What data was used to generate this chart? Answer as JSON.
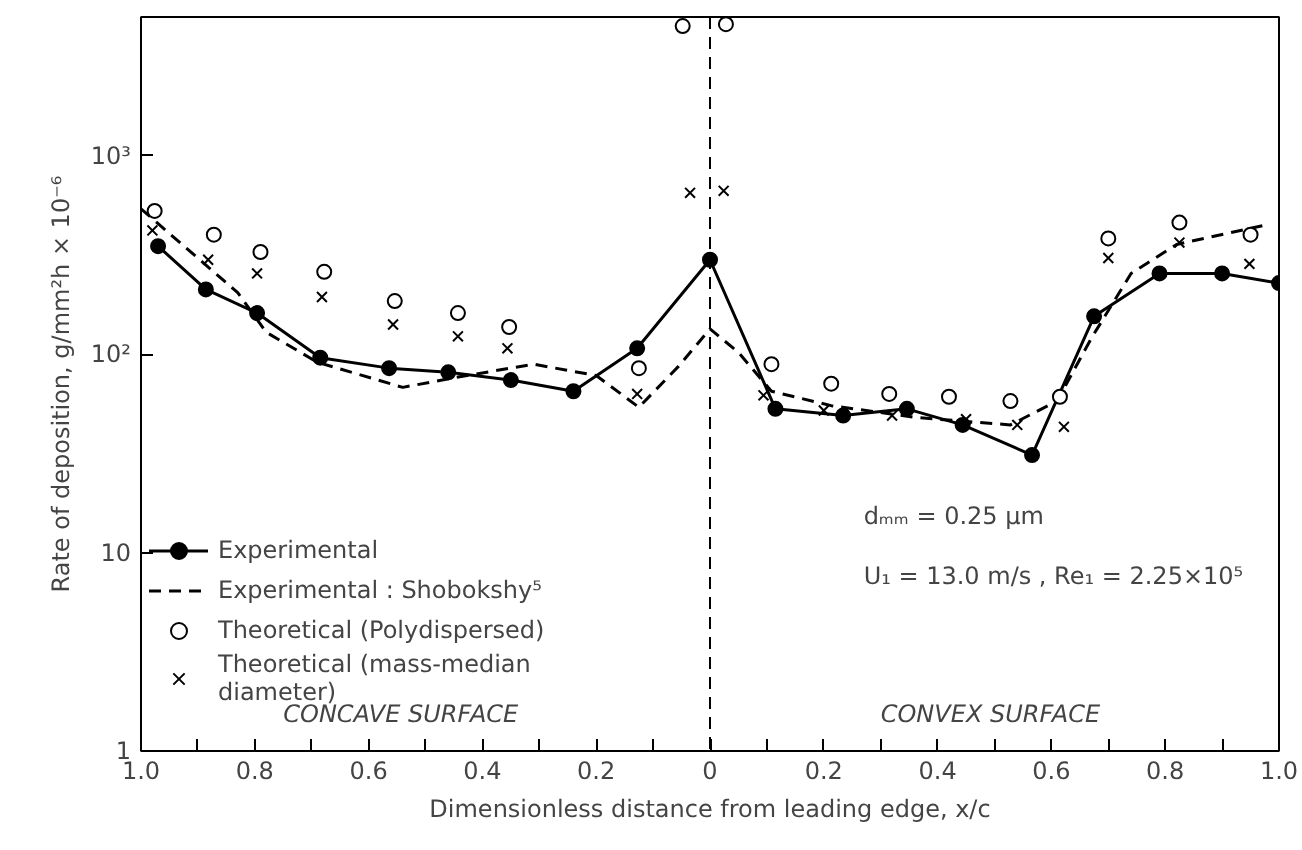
{
  "chart_data": {
    "type": "line",
    "xlabel": "Dimensionless distance from leading edge, x/c",
    "ylabel": "Rate of deposition, g/mm²h × 10⁻⁶",
    "xlim": [
      -1.0,
      1.0
    ],
    "ylim": [
      1,
      5000
    ],
    "log": "y",
    "grid": false,
    "legend": "bottom left",
    "xticks": [
      {
        "value": -1.0,
        "label": "1.0"
      },
      {
        "value": -0.9,
        "label": null
      },
      {
        "value": -0.8,
        "label": "0.8"
      },
      {
        "value": -0.7,
        "label": null
      },
      {
        "value": -0.6,
        "label": "0.6"
      },
      {
        "value": -0.5,
        "label": null
      },
      {
        "value": -0.4,
        "label": "0.4"
      },
      {
        "value": -0.3,
        "label": null
      },
      {
        "value": -0.2,
        "label": "0.2"
      },
      {
        "value": -0.1,
        "label": null
      },
      {
        "value": 0,
        "label": "0"
      },
      {
        "value": 0.1,
        "label": null
      },
      {
        "value": 0.2,
        "label": "0.2"
      },
      {
        "value": 0.3,
        "label": null
      },
      {
        "value": 0.4,
        "label": "0.4"
      },
      {
        "value": 0.5,
        "label": null
      },
      {
        "value": 0.6,
        "label": "0.6"
      },
      {
        "value": 0.7,
        "label": null
      },
      {
        "value": 0.8,
        "label": "0.8"
      },
      {
        "value": 0.9,
        "label": null
      },
      {
        "value": 1.0,
        "label": "1.0"
      }
    ],
    "yticks": [
      1,
      10,
      {
        "value": 100,
        "label": "10²"
      },
      {
        "value": 1000,
        "label": "10³"
      }
    ],
    "ref_lines": [
      {
        "axis": "x",
        "value": 0,
        "label": null,
        "color": "#000000",
        "line_style": "dashed"
      }
    ],
    "annotations": [
      "CONCAVE SURFACE",
      "CONVEX SURFACE",
      "dₘₘ = 0.25 μm",
      "U₁ = 13.0 m/s , Re₁ = 2.25×10⁵"
    ],
    "series": [
      {
        "name": "Experimental",
        "marker": "circle",
        "line_style": "solid",
        "color": "#000000",
        "x": [
          -0.97,
          -0.886,
          -0.796,
          -0.685,
          -0.564,
          -0.46,
          -0.35,
          -0.24,
          -0.128,
          0,
          0.115,
          0.234,
          0.346,
          0.444,
          0.566,
          0.675,
          0.79,
          0.9,
          1.0
        ],
        "values": [
          350,
          212,
          161,
          96,
          85,
          81,
          74,
          65,
          107,
          299,
          53,
          49,
          53,
          44,
          31,
          155,
          255,
          255,
          228
        ]
      },
      {
        "name": "Experimental : Shobokshy⁵",
        "marker": "none",
        "line_style": "dashed",
        "color": "#000000",
        "x": [
          -1.0,
          -0.83,
          -0.78,
          -0.69,
          -0.54,
          -0.45,
          -0.31,
          -0.2,
          -0.125,
          -0.055,
          0,
          0.05,
          0.108,
          0.213,
          0.36,
          0.528,
          0.61,
          0.67,
          0.74,
          0.82,
          0.98
        ],
        "values": [
          540,
          204,
          129,
          91,
          68,
          76,
          89,
          78,
          54,
          87,
          134,
          102,
          65,
          55,
          48,
          44,
          58,
          120,
          255,
          357,
          450
        ]
      },
      {
        "name": "Theoretical (Polydispersed)",
        "type": "scatter",
        "marker": "circle_open",
        "color": "#000000",
        "x": [
          -0.976,
          -0.872,
          -0.79,
          -0.678,
          -0.554,
          -0.443,
          -0.353,
          -0.125,
          -0.048,
          0.028,
          0.108,
          0.213,
          0.315,
          0.42,
          0.528,
          0.615,
          0.7,
          0.825,
          0.95
        ],
        "values": [
          527,
          400,
          327,
          260,
          185,
          161,
          137,
          85,
          4500,
          4600,
          89,
          71,
          63,
          61,
          58,
          61,
          383,
          460,
          400
        ]
      },
      {
        "name": "Theoretical (mass-median\ndiameter)",
        "type": "scatter",
        "marker": "x",
        "color": "#000000",
        "x": [
          -0.98,
          -0.882,
          -0.796,
          -0.682,
          -0.557,
          -0.443,
          -0.356,
          -0.128,
          -0.035,
          0.024,
          0.094,
          0.2,
          0.32,
          0.45,
          0.54,
          0.622,
          0.7,
          0.825,
          0.948
        ],
        "values": [
          420,
          299,
          255,
          194,
          141,
          123,
          107,
          63,
          650,
          665,
          62,
          52,
          49,
          47,
          44,
          43,
          305,
          365,
          285
        ]
      }
    ]
  }
}
